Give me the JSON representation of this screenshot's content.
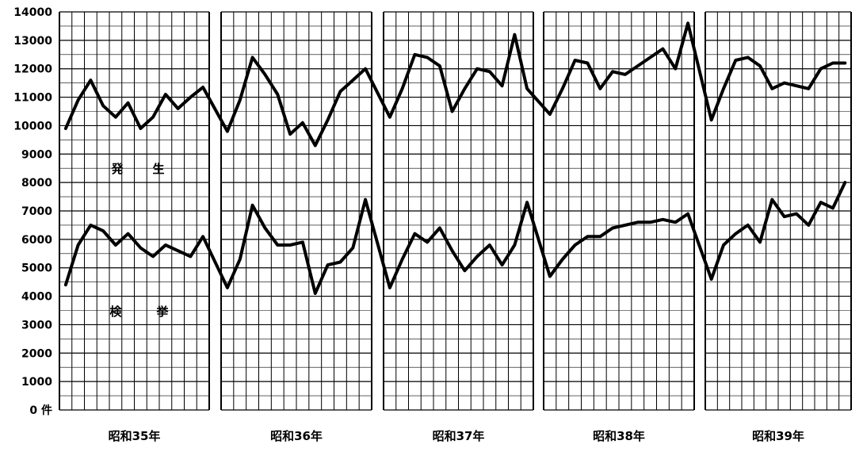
{
  "chart_data": {
    "type": "line",
    "ylim": [
      0,
      14000
    ],
    "y_ticks": [
      "0 件",
      "1000",
      "2000",
      "3000",
      "4000",
      "5000",
      "6000",
      "7000",
      "8000",
      "9000",
      "10000",
      "11000",
      "12000",
      "13000",
      "14000"
    ],
    "year_labels": [
      "昭和35年",
      "昭和36年",
      "昭和37年",
      "昭和38年",
      "昭和39年"
    ],
    "months_per_year": 12,
    "grid": true,
    "series": [
      {
        "name": "発　生",
        "label_chars": [
          "発",
          "生"
        ],
        "values": [
          [
            9900,
            10900,
            11600,
            10700,
            10300,
            10800,
            9900,
            10300,
            11100,
            10600,
            11000,
            11350
          ],
          [
            9800,
            10900,
            12400,
            11800,
            11100,
            9700,
            10100,
            9300,
            10200,
            11200,
            11600,
            12000
          ],
          [
            10300,
            11300,
            12500,
            12400,
            12100,
            10500,
            11300,
            12000,
            11900,
            11400,
            13200,
            11300
          ],
          [
            10400,
            11300,
            12300,
            12200,
            11300,
            11900,
            11800,
            12100,
            12400,
            12700,
            12000,
            13600
          ],
          [
            10200,
            11300,
            12300,
            12400,
            12100,
            11300,
            11500,
            11400,
            11300,
            12000,
            12200,
            12200
          ]
        ]
      },
      {
        "name": "検　挙",
        "label_chars": [
          "検",
          "挙"
        ],
        "values": [
          [
            4400,
            5800,
            6500,
            6300,
            5800,
            6200,
            5700,
            5400,
            5800,
            5600,
            5400,
            6100
          ],
          [
            4300,
            5300,
            7200,
            6400,
            5800,
            5800,
            5900,
            4100,
            5100,
            5200,
            5700,
            7400
          ],
          [
            4300,
            5300,
            6200,
            5900,
            6400,
            5600,
            4900,
            5400,
            5800,
            5100,
            5800,
            7300
          ],
          [
            4700,
            5300,
            5800,
            6100,
            6100,
            6400,
            6500,
            6600,
            6600,
            6700,
            6600,
            6900
          ],
          [
            4600,
            5800,
            6200,
            6500,
            5900,
            7400,
            6800,
            6900,
            6500,
            7300,
            7100,
            8000
          ]
        ]
      }
    ]
  }
}
